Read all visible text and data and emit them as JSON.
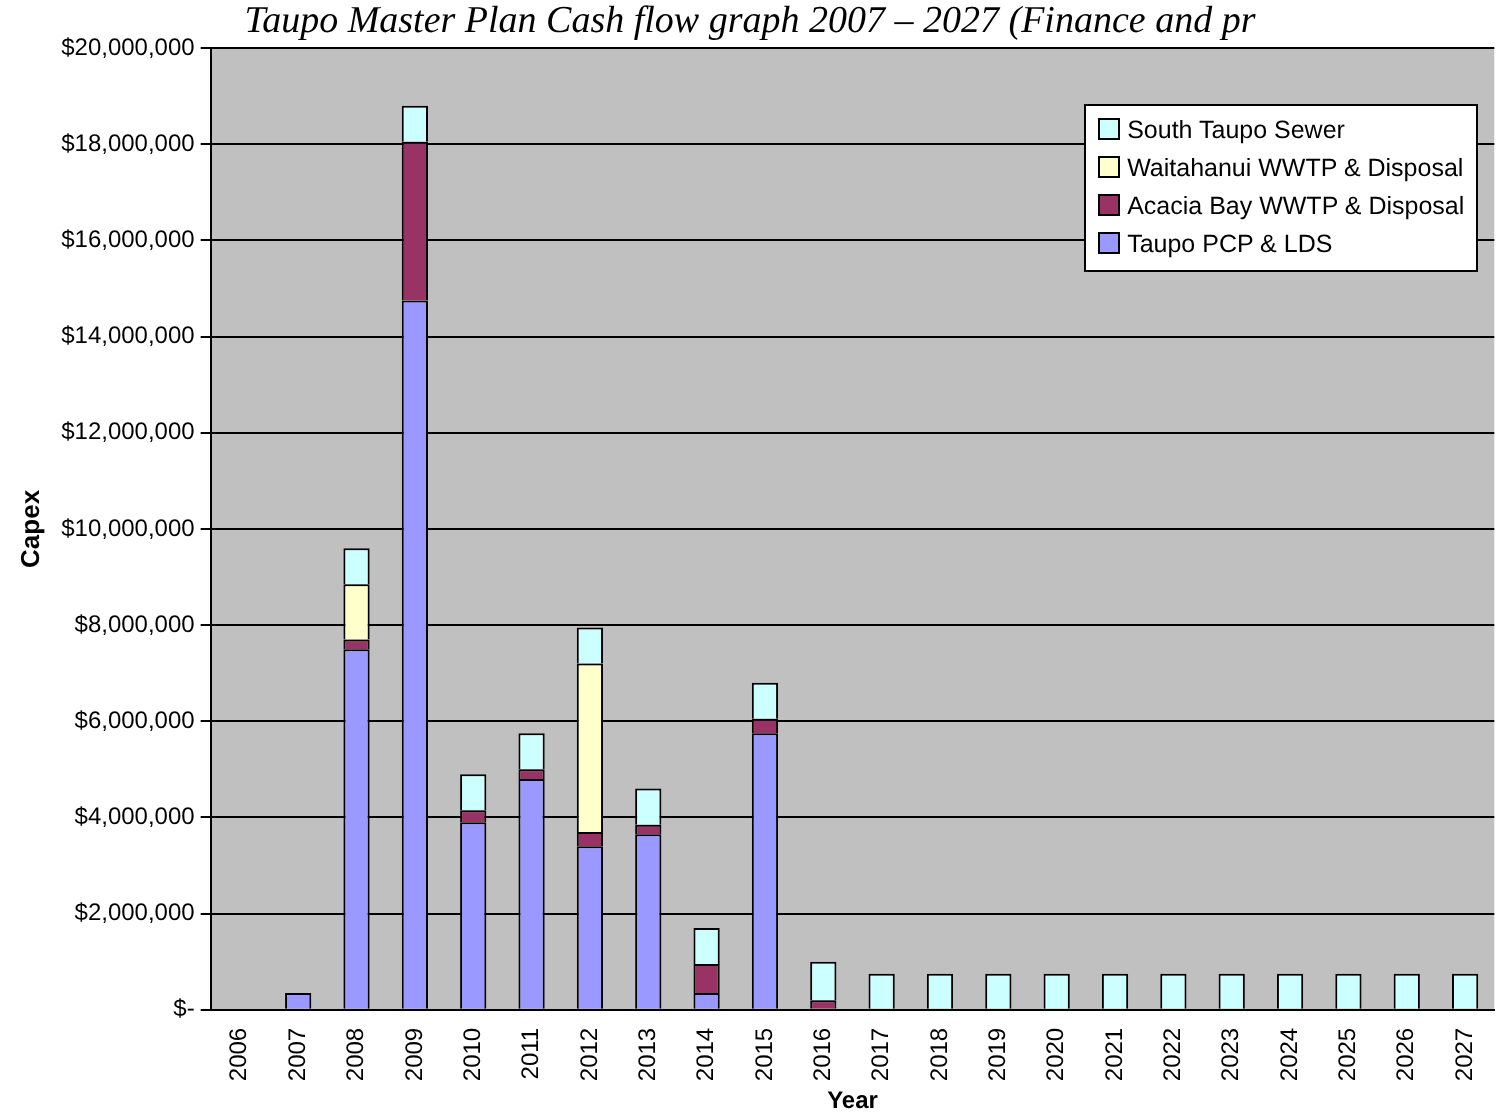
{
  "chart_data": {
    "type": "bar",
    "title": "Taupo Master Plan Cash flow graph 2007 – 2027 (Finance and pr",
    "xlabel": "Year",
    "ylabel": "Capex",
    "categories": [
      "2006",
      "2007",
      "2008",
      "2009",
      "2010",
      "2011",
      "2012",
      "2013",
      "2014",
      "2015",
      "2016",
      "2017",
      "2018",
      "2019",
      "2020",
      "2021",
      "2022",
      "2023",
      "2024",
      "2025",
      "2026",
      "2027"
    ],
    "stacked": true,
    "grid": "y",
    "legend": "top right",
    "ylim": [
      0,
      20000000
    ],
    "yticks": [
      {
        "value": 0,
        "label": "$-"
      },
      {
        "value": 2000000,
        "label": "$2,000,000"
      },
      {
        "value": 4000000,
        "label": "$4,000,000"
      },
      {
        "value": 6000000,
        "label": "$6,000,000"
      },
      {
        "value": 8000000,
        "label": "$8,000,000"
      },
      {
        "value": 10000000,
        "label": "$10,000,000"
      },
      {
        "value": 12000000,
        "label": "$12,000,000"
      },
      {
        "value": 14000000,
        "label": "$14,000,000"
      },
      {
        "value": 16000000,
        "label": "$16,000,000"
      },
      {
        "value": 18000000,
        "label": "$18,000,000"
      },
      {
        "value": 20000000,
        "label": "$20,000,000"
      }
    ],
    "series": [
      {
        "name": "Taupo PCP & LDS",
        "color": "#9999ff",
        "values": [
          0,
          350000,
          7500000,
          14750000,
          3900000,
          4800000,
          3400000,
          3650000,
          350000,
          5750000,
          0,
          0,
          0,
          0,
          0,
          0,
          0,
          0,
          0,
          0,
          0,
          0
        ]
      },
      {
        "name": "Acacia Bay WWTP & Disposal",
        "color": "#993366",
        "values": [
          0,
          0,
          200000,
          3300000,
          250000,
          200000,
          300000,
          200000,
          600000,
          300000,
          200000,
          0,
          0,
          0,
          0,
          0,
          0,
          0,
          0,
          0,
          0,
          0
        ]
      },
      {
        "name": "Waitahanui WWTP & Disposal",
        "color": "#ffffcc",
        "values": [
          0,
          0,
          1150000,
          0,
          0,
          0,
          3500000,
          0,
          0,
          0,
          0,
          0,
          0,
          0,
          0,
          0,
          0,
          0,
          0,
          0,
          0,
          0
        ]
      },
      {
        "name": "South Taupo Sewer",
        "color": "#ccffff",
        "values": [
          0,
          0,
          750000,
          750000,
          750000,
          750000,
          750000,
          750000,
          750000,
          750000,
          800000,
          750000,
          750000,
          750000,
          750000,
          750000,
          750000,
          750000,
          750000,
          750000,
          750000,
          750000
        ]
      }
    ]
  }
}
